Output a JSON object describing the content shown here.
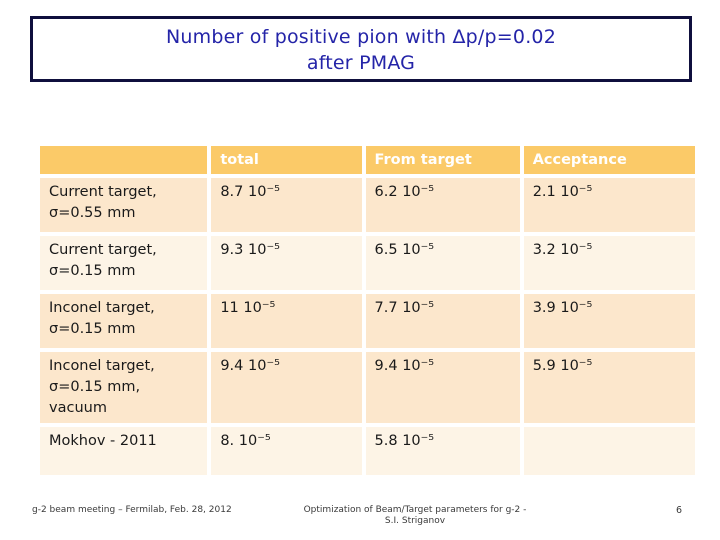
{
  "slide": {
    "title_line1": "Number of positive pion with Δp/p=0.02",
    "title_line2": "after PMAG"
  },
  "table": {
    "header": [
      "",
      "total",
      "From target",
      "Acceptance"
    ],
    "rows": [
      {
        "label_lines": [
          "Current target,",
          "σ=0.55 mm"
        ],
        "cells": [
          "8.7 10⁻⁵",
          "6.2 10⁻⁵",
          "2.1 10⁻⁵"
        ]
      },
      {
        "label_lines": [
          "Current target,",
          "σ=0.15 mm"
        ],
        "cells": [
          "9.3 10⁻⁵",
          "6.5 10⁻⁵",
          "3.2 10⁻⁵"
        ]
      },
      {
        "label_lines": [
          "Inconel target,",
          "σ=0.15 mm"
        ],
        "cells": [
          "11 10⁻⁵",
          "7.7 10⁻⁵",
          "3.9 10⁻⁵"
        ]
      },
      {
        "label_lines": [
          "Inconel target,",
          "σ=0.15 mm, vacuum"
        ],
        "cells": [
          "9.4 10⁻⁵",
          "9.4 10⁻⁵",
          "5.9 10⁻⁵"
        ]
      },
      {
        "label_lines": [
          "Mokhov - 2011"
        ],
        "cells": [
          "8. 10⁻⁵",
          "5.8 10⁻⁵",
          ""
        ]
      }
    ]
  },
  "footer": {
    "left": "g-2 beam meeting – Fermilab, Feb. 28, 2012",
    "center_line1": "Optimization of Beam/Target parameters for g-2 -",
    "center_line2": "S.I. Striganov",
    "page_number": "6"
  },
  "colors": {
    "header_bg": "#fbca68",
    "band_dark": "#fce7cc",
    "band_light": "#fdf4e6",
    "title_text": "#2424a8",
    "title_border": "#0f0f3d"
  }
}
